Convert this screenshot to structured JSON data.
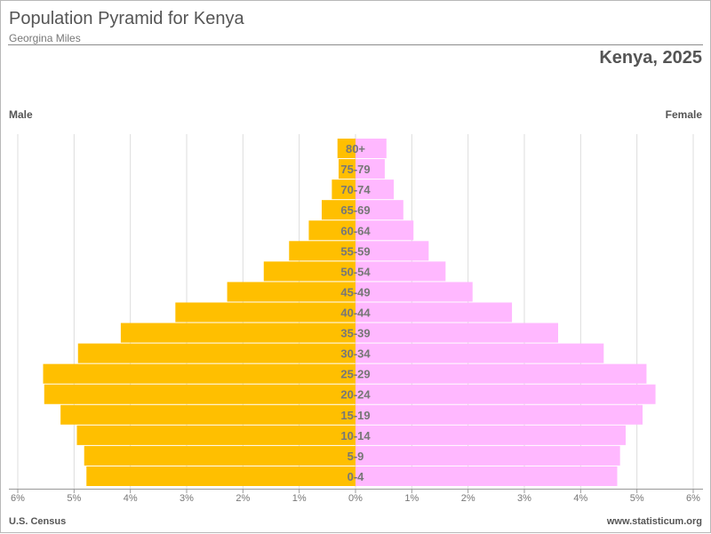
{
  "header": {
    "title": "Population Pyramid for Kenya",
    "author": "Georgina Miles",
    "country_year": "Kenya, 2025"
  },
  "labels": {
    "male": "Male",
    "female": "Female"
  },
  "footer": {
    "source": "U.S. Census",
    "site": "www.statisticum.org"
  },
  "colors": {
    "male": "#ffbf00",
    "female": "#ffb8ff",
    "age_text": "#777777",
    "grid": "#dddddd"
  },
  "chart_data": {
    "type": "bar",
    "orientation": "horizontal-pyramid",
    "categories": [
      "0-4",
      "5-9",
      "10-14",
      "15-19",
      "20-24",
      "25-29",
      "30-34",
      "35-39",
      "40-44",
      "45-49",
      "50-54",
      "55-59",
      "60-64",
      "65-69",
      "70-74",
      "75-79",
      "80+"
    ],
    "series": [
      {
        "name": "Male",
        "values": [
          4.78,
          4.82,
          4.95,
          5.24,
          5.53,
          5.55,
          4.93,
          4.17,
          3.2,
          2.28,
          1.63,
          1.18,
          0.83,
          0.6,
          0.42,
          0.3,
          0.32
        ]
      },
      {
        "name": "Female",
        "values": [
          4.65,
          4.7,
          4.8,
          5.1,
          5.33,
          5.17,
          4.41,
          3.6,
          2.78,
          2.08,
          1.6,
          1.3,
          1.03,
          0.85,
          0.68,
          0.52,
          0.55
        ]
      }
    ],
    "unit": "%",
    "xlim": [
      -6,
      6
    ],
    "x_ticks": [
      -6,
      -5,
      -4,
      -3,
      -2,
      -1,
      0,
      1,
      2,
      3,
      4,
      5,
      6
    ],
    "x_tick_labels": [
      "6%",
      "5%",
      "4%",
      "3%",
      "2%",
      "1%",
      "0%",
      "1%",
      "2%",
      "3%",
      "4%",
      "5%",
      "6%"
    ],
    "grid": true
  }
}
